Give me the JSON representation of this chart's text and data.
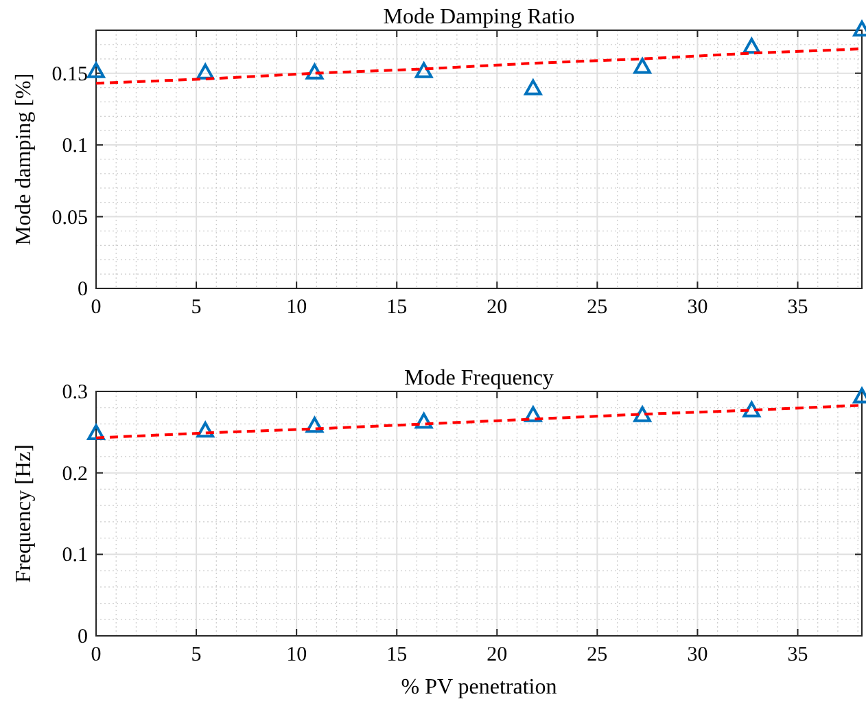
{
  "chart_data": [
    {
      "type": "scatter",
      "title": "Mode Damping Ratio",
      "ylabel": "Mode damping [%]",
      "x": [
        0,
        5.45,
        10.9,
        16.35,
        21.8,
        27.25,
        32.7,
        38.2
      ],
      "series": [
        {
          "color": "#0072bd",
          "marker": "triangle",
          "values": [
            0.151,
            0.15,
            0.15,
            0.151,
            0.139,
            0.154,
            0.168,
            0.18
          ]
        },
        {
          "type": "line",
          "color": "#ff0000",
          "line_style": "dashed",
          "marker": "none",
          "values": [
            0.143,
            0.146,
            0.15,
            0.153,
            0.157,
            0.16,
            0.164,
            0.167
          ]
        }
      ],
      "xlim": [
        0,
        38.2
      ],
      "ylim": [
        0,
        0.18
      ],
      "xticks": [
        0,
        5,
        10,
        15,
        20,
        25,
        30,
        35
      ],
      "yticks": [
        0,
        0.05,
        0.1,
        0.15
      ],
      "grid": true
    },
    {
      "type": "scatter",
      "title": "Mode Frequency",
      "ylabel": "Frequency [Hz]",
      "xlabel": "% PV penetration",
      "x": [
        0,
        5.45,
        10.9,
        16.35,
        21.8,
        27.25,
        32.7,
        38.2
      ],
      "series": [
        {
          "color": "#0072bd",
          "marker": "triangle",
          "values": [
            0.248,
            0.251,
            0.257,
            0.262,
            0.27,
            0.27,
            0.276,
            0.293
          ]
        },
        {
          "type": "line",
          "color": "#ff0000",
          "line_style": "dashed",
          "marker": "none",
          "values": [
            0.243,
            0.249,
            0.254,
            0.26,
            0.266,
            0.272,
            0.277,
            0.283
          ]
        }
      ],
      "xlim": [
        0,
        38.2
      ],
      "ylim": [
        0,
        0.3
      ],
      "xticks": [
        0,
        5,
        10,
        15,
        20,
        25,
        30,
        35
      ],
      "yticks": [
        0,
        0.1,
        0.2,
        0.3
      ],
      "grid": true
    }
  ]
}
